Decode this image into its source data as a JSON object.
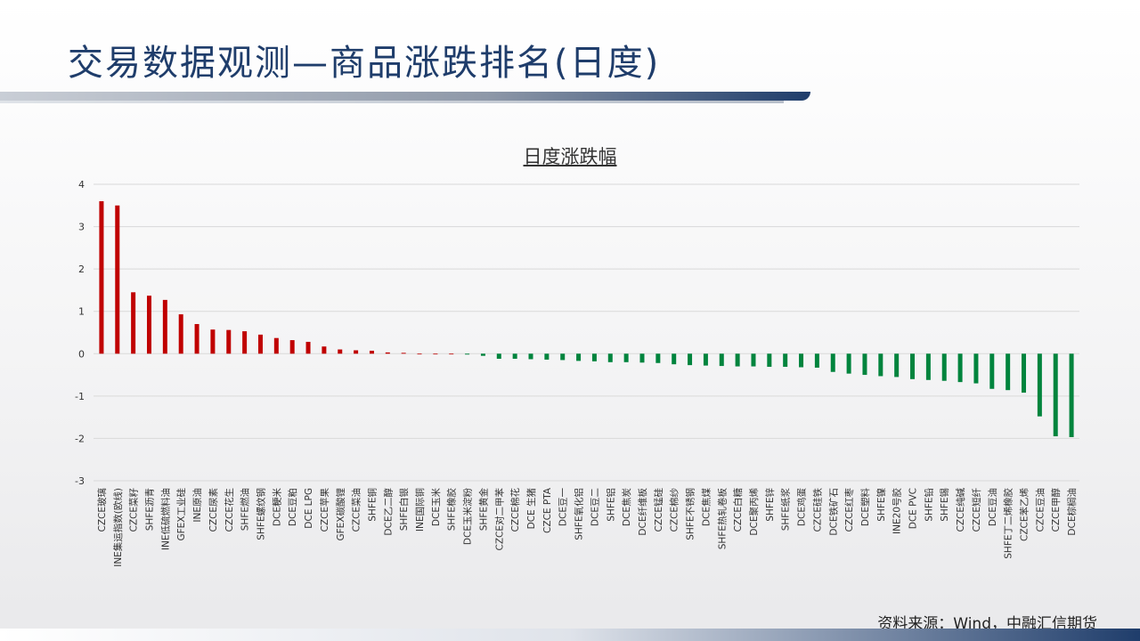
{
  "page": {
    "title": "交易数据观测—商品涨跌排名(日度)",
    "source": "资料来源：Wind，中融汇信期货"
  },
  "colors": {
    "positive": "#c00000",
    "negative": "#00843d",
    "title": "#1f3d6b"
  },
  "chart_data": {
    "type": "bar",
    "title": "日度涨跌幅",
    "xlabel": "",
    "ylabel": "",
    "ylim": [
      -3,
      4
    ],
    "yticks": [
      4,
      3,
      2,
      1,
      0,
      -1,
      -2,
      -3
    ],
    "grid": true,
    "categories": [
      "CZCE玻璃",
      "INE集运指数(欧线)",
      "CZCE菜籽",
      "SHFE沥青",
      "INE低硫燃料油",
      "GFEX工业硅",
      "INE原油",
      "CZCE尿素",
      "CZCE花生",
      "SHFE燃油",
      "SHFE螺纹钢",
      "DCE粳米",
      "DCE豆粕",
      "DCE LPG",
      "CZCE苹果",
      "GFEX碳酸锂",
      "CZCE菜油",
      "SHFE铜",
      "DCE乙二醇",
      "SHFE白银",
      "INE国际铜",
      "DCE玉米",
      "SHFE橡胶",
      "DCE玉米淀粉",
      "SHFE黄金",
      "CZCE对二甲苯",
      "CZCE棉花",
      "DCE 生猪",
      "CZCE PTA",
      "DCE豆一",
      "SHFE氧化铝",
      "DCE豆二",
      "SHFE铝",
      "DCE焦炭",
      "DCE纤维板",
      "CZCE锰硅",
      "CZCE棉纱",
      "SHFE不锈钢",
      "DCE焦煤",
      "SHFE热轧卷板",
      "CZCE白糖",
      "DCE聚丙烯",
      "SHFE锌",
      "SHFE纸浆",
      "DCE鸡蛋",
      "CZCE硅铁",
      "DCE铁矿石",
      "CZCE红枣",
      "DCE塑料",
      "SHFE镍",
      "INE20号胶",
      "DCE PVC",
      "SHFE铅",
      "SHFE锡",
      "CZCE纯碱",
      "CZCE短纤",
      "DCE豆油",
      "SHFE丁二烯橡胶",
      "CZCE苯乙烯",
      "CZCE豆油",
      "CZCE甲醇",
      "DCE棕榈油"
    ],
    "values": [
      3.6,
      3.5,
      1.45,
      1.37,
      1.27,
      0.93,
      0.7,
      0.57,
      0.56,
      0.53,
      0.45,
      0.37,
      0.32,
      0.28,
      0.17,
      0.1,
      0.08,
      0.07,
      0.03,
      0.02,
      0.0,
      0.0,
      0.0,
      -0.02,
      -0.05,
      -0.12,
      -0.12,
      -0.13,
      -0.14,
      -0.15,
      -0.17,
      -0.18,
      -0.2,
      -0.2,
      -0.21,
      -0.22,
      -0.25,
      -0.27,
      -0.28,
      -0.29,
      -0.3,
      -0.3,
      -0.31,
      -0.31,
      -0.32,
      -0.33,
      -0.43,
      -0.47,
      -0.5,
      -0.53,
      -0.55,
      -0.6,
      -0.62,
      -0.64,
      -0.67,
      -0.7,
      -0.83,
      -0.86,
      -0.92,
      -1.48,
      -1.95,
      -1.97
    ]
  }
}
